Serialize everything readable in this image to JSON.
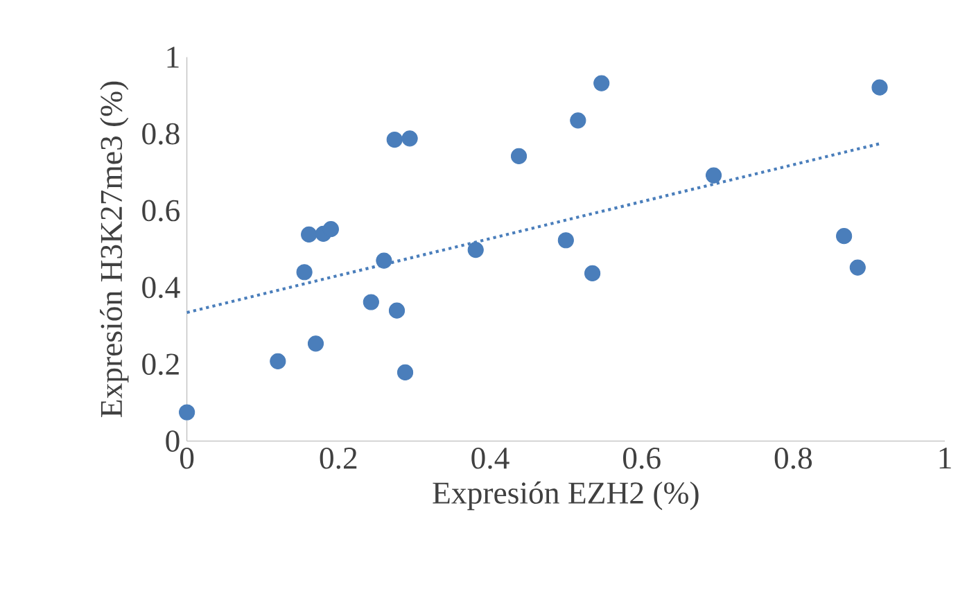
{
  "chart_data": {
    "type": "scatter",
    "xlabel": "Expresión EZH2 (%)",
    "ylabel": "Expresión H3K27me3 (%)",
    "xlim": [
      0,
      1
    ],
    "ylim": [
      0,
      1
    ],
    "xticks": [
      0,
      0.2,
      0.4,
      0.6,
      0.8,
      1
    ],
    "yticks": [
      0,
      0.2,
      0.4,
      0.6,
      0.8,
      1
    ],
    "grid": false,
    "series": [
      {
        "marker": "circle",
        "color": "#4a7ebb",
        "x": [
          0,
          0.12,
          0.17,
          0.161,
          0.155,
          0.18,
          0.19,
          0.26,
          0.243,
          0.277,
          0.274,
          0.294,
          0.288,
          0.381,
          0.438,
          0.5,
          0.516,
          0.535,
          0.547,
          0.695,
          0.867,
          0.885,
          0.914
        ],
        "values": [
          0.075,
          0.208,
          0.254,
          0.538,
          0.44,
          0.54,
          0.552,
          0.47,
          0.362,
          0.34,
          0.785,
          0.788,
          0.179,
          0.498,
          0.742,
          0.523,
          0.835,
          0.437,
          0.932,
          0.692,
          0.534,
          0.452,
          0.921
        ]
      },
      {
        "type": "line",
        "marker": "none",
        "color": "#4a7ebb",
        "line_style": "dotted",
        "x": [
          0,
          0.915
        ],
        "values": [
          0.335,
          0.775
        ]
      }
    ]
  }
}
